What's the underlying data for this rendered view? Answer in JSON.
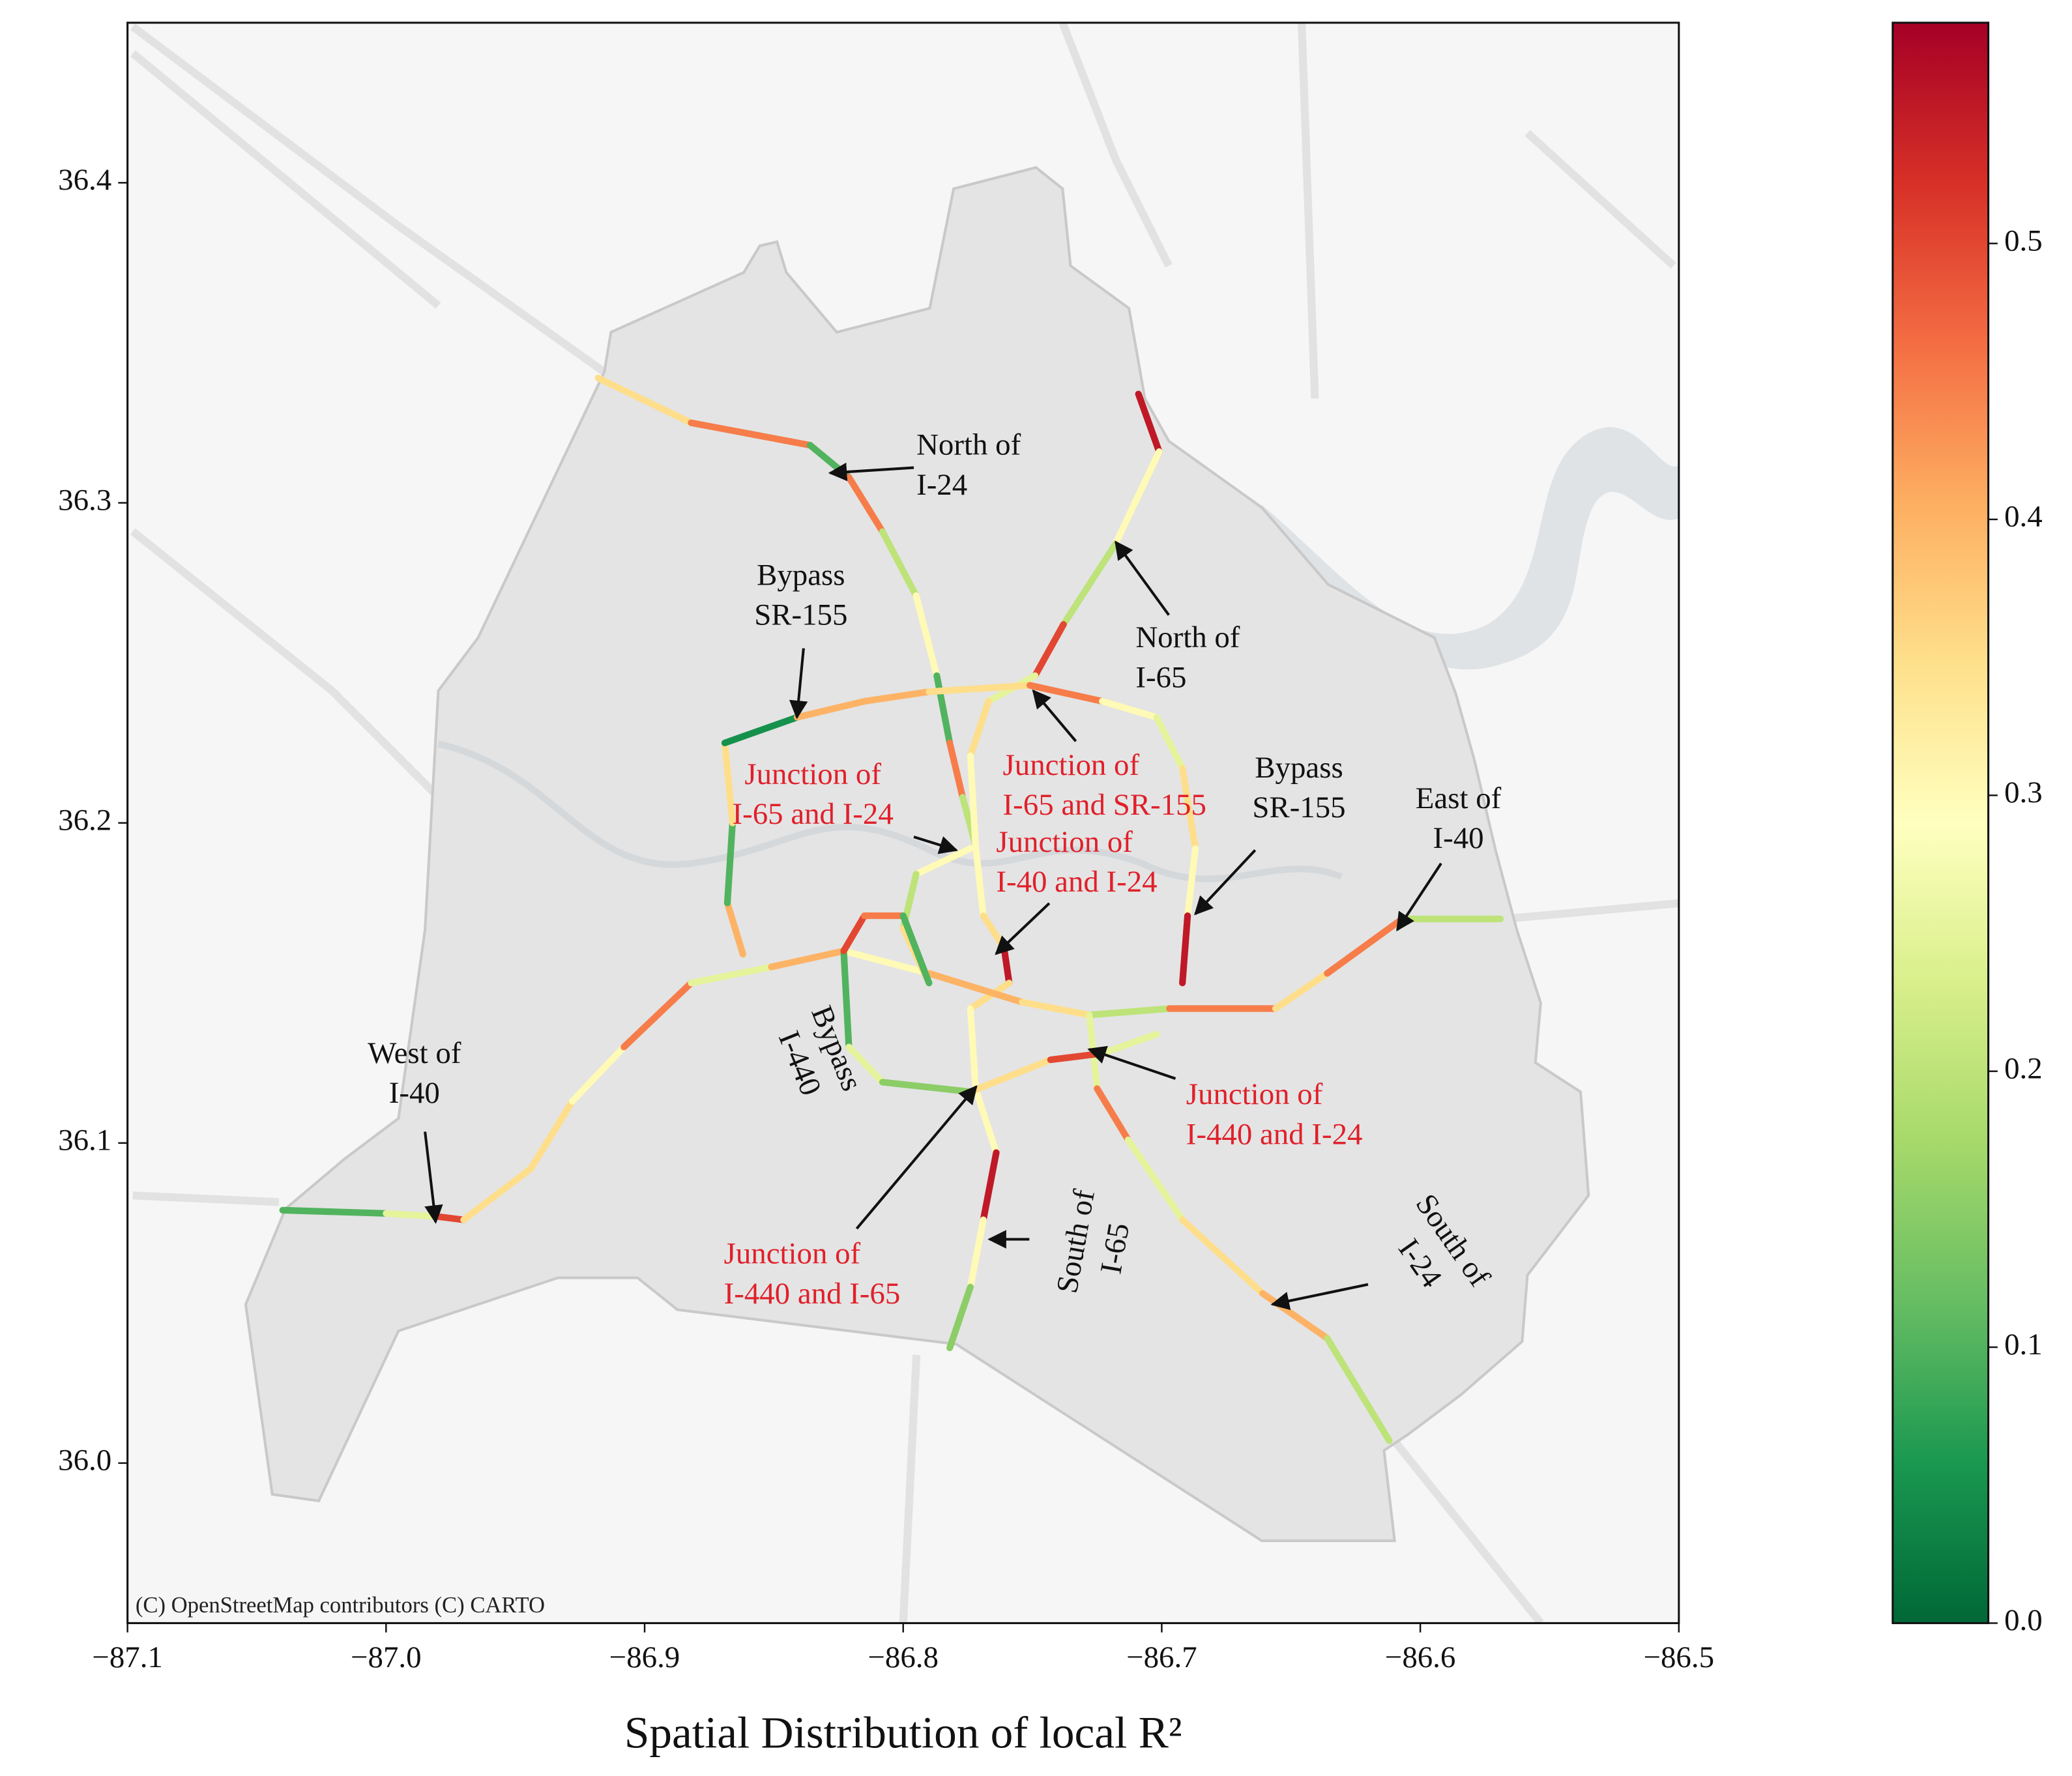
{
  "chart_data": {
    "type": "map",
    "xlabel": "Spatial Distribution of local R²",
    "attribution": "(C) OpenStreetMap contributors (C) CARTO",
    "xlim": [
      -87.1,
      -86.5
    ],
    "xticks": [
      {
        "value": -87.1,
        "label": "−87.1"
      },
      {
        "value": -87.0,
        "label": "−87.0"
      },
      {
        "value": -86.9,
        "label": "−86.9"
      },
      {
        "value": -86.8,
        "label": "−86.8"
      },
      {
        "value": -86.7,
        "label": "−86.7"
      },
      {
        "value": -86.6,
        "label": "−86.6"
      },
      {
        "value": -86.5,
        "label": "−86.5"
      }
    ],
    "ylim": [
      35.95,
      36.45
    ],
    "yticks": [
      {
        "value": 36.0,
        "label": "36.0"
      },
      36.1,
      36.2,
      36.3,
      36.4
    ],
    "colormap": [
      "#006837",
      "#1a9850",
      "#66bd63",
      "#a6d96a",
      "#d9ef8b",
      "#ffffbf",
      "#fee08b",
      "#fdae61",
      "#f46d43",
      "#d73027",
      "#a50026"
    ],
    "clim": [
      0,
      0.58
    ],
    "cticks": [
      {
        "value": 0,
        "label": "0.0"
      },
      0.1,
      0.2,
      0.3,
      0.4,
      0.5
    ],
    "roads": [
      {
        "lon": [
          -86.918,
          -86.882,
          -86.836,
          -86.821,
          -86.808,
          -86.795,
          -86.787,
          -86.782,
          -86.777,
          -86.772
        ],
        "lat": [
          36.339,
          36.325,
          36.318,
          36.308,
          36.291,
          36.271,
          36.246,
          36.225,
          36.208,
          36.193
        ],
        "values": [
          0.35,
          0.45,
          0.1,
          0.45,
          0.2,
          0.3,
          0.1,
          0.45,
          0.2
        ]
      },
      {
        "lon": [
          -86.709,
          -86.701,
          -86.718,
          -86.738,
          -86.749,
          -86.767,
          -86.774,
          -86.772
        ],
        "lat": [
          36.334,
          36.316,
          36.287,
          36.262,
          36.246,
          36.238,
          36.221,
          36.193
        ],
        "values": [
          0.55,
          0.3,
          0.2,
          0.5,
          0.25,
          0.35,
          0.3
        ]
      },
      {
        "lon": [
          -86.772,
          -86.769,
          -86.761,
          -86.759,
          -86.774,
          -86.772,
          -86.764,
          -86.769,
          -86.774,
          -86.782
        ],
        "lat": [
          36.193,
          36.171,
          36.161,
          36.15,
          36.142,
          36.117,
          36.097,
          36.076,
          36.055,
          36.036
        ],
        "values": [
          0.3,
          0.35,
          0.55,
          0.35,
          0.3,
          0.3,
          0.55,
          0.3,
          0.15
        ]
      },
      {
        "lon": [
          -86.862,
          -86.868,
          -86.866,
          -86.869,
          -86.841,
          -86.815,
          -86.79,
          -86.751,
          -86.723,
          -86.702,
          -86.692,
          -86.687,
          -86.69,
          -86.692
        ],
        "lat": [
          36.159,
          36.175,
          36.2,
          36.225,
          36.233,
          36.238,
          36.241,
          36.243,
          36.238,
          36.233,
          36.217,
          36.192,
          36.171,
          36.15
        ],
        "values": [
          0.4,
          0.1,
          0.35,
          0.05,
          0.4,
          0.4,
          0.35,
          0.45,
          0.3,
          0.25,
          0.35,
          0.3,
          0.55
        ]
      },
      {
        "lon": [
          -87.04,
          -87.0,
          -86.98,
          -86.97,
          -86.944,
          -86.928,
          -86.908,
          -86.882,
          -86.851,
          -86.823,
          -86.79,
          -86.754,
          -86.728,
          -86.697,
          -86.656,
          -86.636,
          -86.607,
          -86.569
        ],
        "lat": [
          36.079,
          36.078,
          36.077,
          36.076,
          36.092,
          36.113,
          36.13,
          36.15,
          36.155,
          36.16,
          36.153,
          36.144,
          36.14,
          36.142,
          36.142,
          36.153,
          36.17,
          36.17
        ],
        "values": [
          0.1,
          0.25,
          0.5,
          0.35,
          0.35,
          0.3,
          0.45,
          0.25,
          0.4,
          0.3,
          0.4,
          0.35,
          0.2,
          0.45,
          0.35,
          0.45,
          0.2
        ]
      },
      {
        "lon": [
          -86.728,
          -86.725,
          -86.713,
          -86.692,
          -86.661,
          -86.636,
          -86.612
        ],
        "lat": [
          36.14,
          36.117,
          36.101,
          36.076,
          36.053,
          36.039,
          36.007
        ],
        "values": [
          0.25,
          0.45,
          0.25,
          0.35,
          0.4,
          0.2
        ]
      },
      {
        "lon": [
          -86.823,
          -86.821,
          -86.808,
          -86.774,
          -86.743,
          -86.723,
          -86.702
        ],
        "lat": [
          36.16,
          36.13,
          36.119,
          36.116,
          36.126,
          36.128,
          36.134
        ],
        "values": [
          0.1,
          0.25,
          0.15,
          0.35,
          0.5,
          0.25
        ]
      },
      {
        "lon": [
          -86.774,
          -86.795,
          -86.8,
          -86.79
        ],
        "lat": [
          36.192,
          36.184,
          36.167,
          36.15
        ],
        "values": [
          0.3,
          0.2,
          0.35
        ]
      },
      {
        "lon": [
          -86.823,
          -86.815,
          -86.8,
          -86.79
        ],
        "lat": [
          36.16,
          36.171,
          36.171,
          36.15
        ],
        "values": [
          0.5,
          0.45,
          0.1
        ]
      }
    ],
    "annotations": [
      {
        "lines": [
          "North of",
          "I-24"
        ],
        "color": "#111111"
      },
      {
        "lines": [
          "Bypass",
          "SR-155"
        ],
        "color": "#111111"
      },
      {
        "lines": [
          "North of",
          "I-65"
        ],
        "color": "#111111"
      },
      {
        "lines": [
          "Junction of",
          "I-65 and I-24"
        ],
        "color": "#e0202a"
      },
      {
        "lines": [
          "Junction of",
          "I-65 and SR-155"
        ],
        "color": "#e0202a"
      },
      {
        "lines": [
          "Bypass",
          "SR-155"
        ],
        "color": "#111111"
      },
      {
        "lines": [
          "East of",
          "I-40"
        ],
        "color": "#111111"
      },
      {
        "lines": [
          "Junction of",
          "I-40 and I-24"
        ],
        "color": "#e0202a"
      },
      {
        "lines": [
          "West of",
          "I-40"
        ],
        "color": "#111111"
      },
      {
        "lines": [
          "Bypass",
          "I-440"
        ],
        "color": "#111111"
      },
      {
        "lines": [
          "Junction of",
          "I-440 and I-24"
        ],
        "color": "#e0202a"
      },
      {
        "lines": [
          "Junction of",
          "I-440 and I-65"
        ],
        "color": "#e0202a"
      },
      {
        "lines": [
          "South of",
          "I-65"
        ],
        "color": "#111111"
      },
      {
        "lines": [
          "South of",
          "I-24"
        ],
        "color": "#111111"
      }
    ]
  }
}
